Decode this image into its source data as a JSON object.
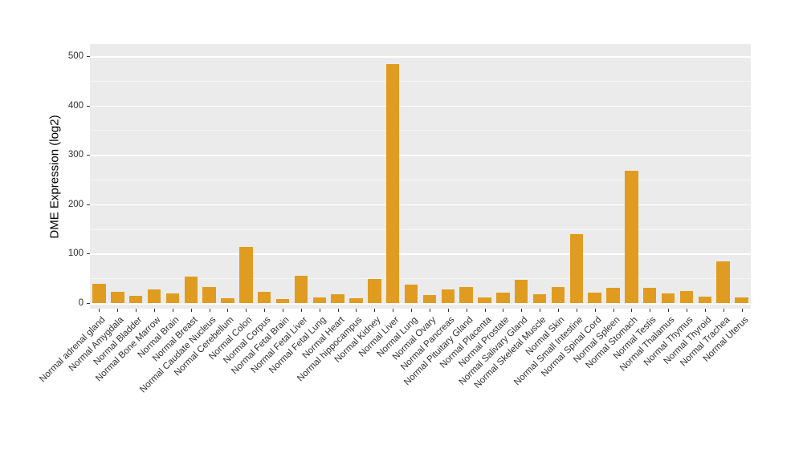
{
  "chart_data": {
    "type": "bar",
    "title": "",
    "xlabel": "",
    "ylabel": "DME Expression (log2)",
    "ylim": [
      0,
      500
    ],
    "yticks": [
      0,
      100,
      200,
      300,
      400,
      500
    ],
    "minor_step": 50,
    "grid": "on",
    "legend": "none",
    "bar_color": "#E09C20",
    "panel_color": "#EBEBEB",
    "gridline_color": "#FFFFFF",
    "categories": [
      "Normal adrenal gland",
      "Normal Amygdala",
      "Normal Bladder",
      "Normal Bone Marrow",
      "Normal Brain",
      "Normal Breast",
      "Normal Caudate Nucleus",
      "Normal Cerebellum",
      "Normal Colon",
      "Normal Corpus",
      "Normal Fetal Brain",
      "Normal Fetal Liver",
      "Normal Fetal Lung",
      "Normal Heart",
      "Normal hippocampus",
      "Normal Kidney",
      "Normal Liver",
      "Normal Lung",
      "Normal Ovary",
      "Normal Pancreas",
      "Normal Pituitary Gland",
      "Normal Placenta",
      "Normal Prostate",
      "Normal Salivary Gland",
      "Normal Skeletal Muscle",
      "Normal Skin",
      "Normal Small Intestine",
      "Normal Spinal Cord",
      "Normal Spleen",
      "Normal Stomach",
      "Normal Testis",
      "Normal Thalamus",
      "Normal Thymus",
      "Normal Thyroid",
      "Normal Trachea",
      "Normal Uterus"
    ],
    "values": [
      39,
      23,
      15,
      28,
      19,
      54,
      32,
      10,
      114,
      23,
      8,
      55,
      11,
      18,
      10,
      49,
      484,
      37,
      16,
      28,
      32,
      11,
      21,
      47,
      18,
      32,
      140,
      21,
      31,
      268,
      31,
      19,
      24,
      13,
      84,
      11
    ]
  }
}
